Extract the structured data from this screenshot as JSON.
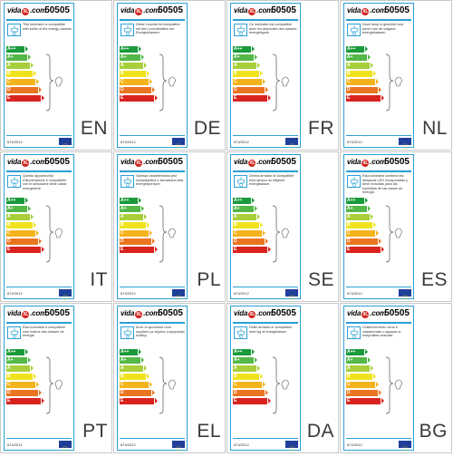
{
  "label_common": {
    "brand": "vidaXL.com",
    "model": "50505",
    "regulation": "874/2012",
    "classes": [
      "A++",
      "A+",
      "A",
      "B",
      "C",
      "D",
      "E"
    ],
    "class_colors": [
      "#1a9a3a",
      "#53b848",
      "#a8cf3b",
      "#f0e31e",
      "#f5b31b",
      "#ea7520",
      "#d9231f"
    ],
    "accent": "#2aa0d6"
  },
  "panels": [
    {
      "lang": "EN",
      "text": "This luminaire is compatible with bulbs of the energy classes"
    },
    {
      "lang": "DE",
      "text": "Diese Leuchte ist kompatibel mit den Leuchtmitteln der Energieklassen"
    },
    {
      "lang": "FR",
      "text": "Ce luminaire est compatible avec les ampoules des classes énergétiques"
    },
    {
      "lang": "NL",
      "text": "Deze lamp is geschikt voor peren van de volgend energieklassen"
    },
    {
      "lang": "IT",
      "text": "Questo apparecchio d'illuminazione è compatibile con le lampadine delle classi energetiche"
    },
    {
      "lang": "PL",
      "text": "Oprawa oświetleniowa jest kompatybilna z żarówkami klas energetycznych"
    },
    {
      "lang": "SE",
      "text": "Denna armatur är kompatibel med lampor av följande energiklasser"
    },
    {
      "lang": "ES",
      "text": "Esta luminaria contiene las lámparas LED incorporadas y tiene incluidas para las bombillas de las clases de energía"
    },
    {
      "lang": "PT",
      "text": "Esta luminária é compatível com bulbos das classes de energia"
    },
    {
      "lang": "EL",
      "text": "Αυτό το φωτιστικό είναι συμβατό με λάμπες ενεργειακής κλάσης"
    },
    {
      "lang": "DA",
      "text": "Dette armatur er kompatibel med lyg af energiklasser"
    },
    {
      "lang": "BG",
      "text": "Осветителното тяло е съвместимо с крушки от енергийни класове"
    }
  ]
}
